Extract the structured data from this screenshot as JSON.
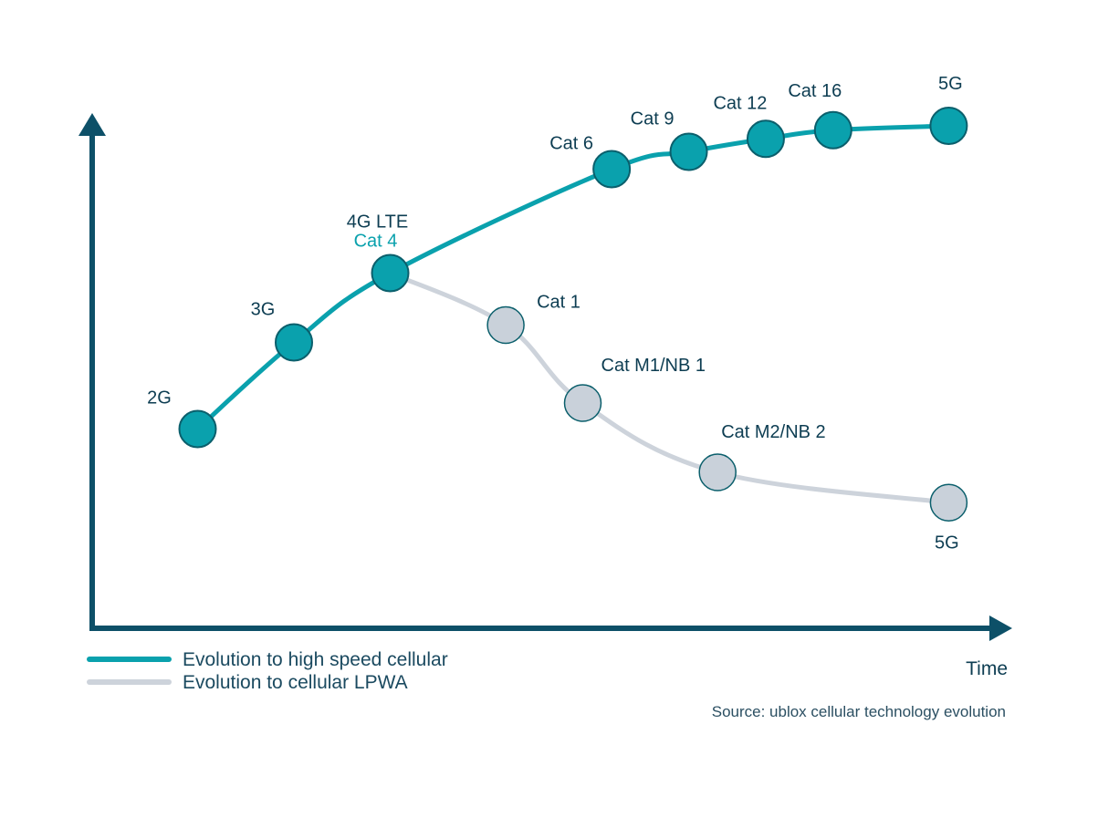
{
  "chart_data": {
    "type": "line",
    "title": "",
    "xlabel": "Time",
    "ylabel": "",
    "grid": false,
    "legend_position": "bottom-left",
    "source": "Source: ublox cellular technology evolution",
    "colors": {
      "axis": "#0d5068",
      "high_speed": "#0aa1ad",
      "lpwa_line": "#cdd3db",
      "lpwa_marker": "#c9d1da",
      "label": "#0d3d52",
      "cat4": "#0aa1ad"
    },
    "series": [
      {
        "name": "Evolution to high speed cellular",
        "points": [
          {
            "x": 1.0,
            "y": 2.3,
            "label": "2G"
          },
          {
            "x": 2.0,
            "y": 3.3,
            "label": "3G"
          },
          {
            "x": 3.0,
            "y": 4.1,
            "label": "4G LTE",
            "sublabel": "Cat 4"
          },
          {
            "x": 5.3,
            "y": 5.3,
            "label": "Cat 6"
          },
          {
            "x": 6.1,
            "y": 5.5,
            "label": "Cat 9"
          },
          {
            "x": 6.9,
            "y": 5.65,
            "label": "Cat 12"
          },
          {
            "x": 7.6,
            "y": 5.75,
            "label": "Cat 16"
          },
          {
            "x": 8.8,
            "y": 5.8,
            "label": "5G"
          }
        ]
      },
      {
        "name": "Evolution to cellular LPWA",
        "points": [
          {
            "x": 3.0,
            "y": 4.1,
            "label": ""
          },
          {
            "x": 4.2,
            "y": 3.5,
            "label": "Cat 1"
          },
          {
            "x": 5.0,
            "y": 2.6,
            "label": "Cat M1/NB 1"
          },
          {
            "x": 6.4,
            "y": 1.8,
            "label": "Cat M2/NB 2"
          },
          {
            "x": 8.8,
            "y": 1.45,
            "label": "5G"
          }
        ]
      }
    ]
  }
}
